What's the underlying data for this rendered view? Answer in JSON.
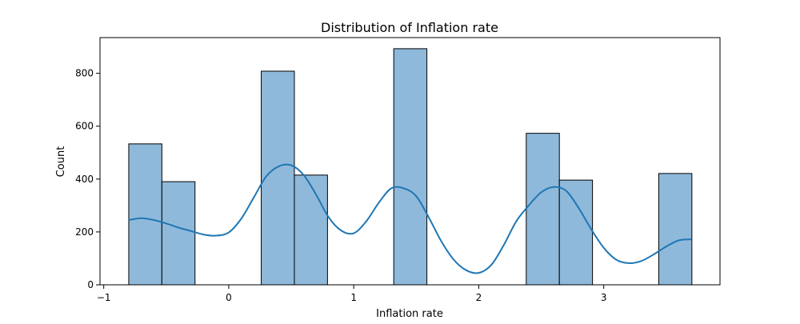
{
  "chart_data": {
    "type": "bar",
    "title": "Distribution of Inflation rate",
    "xlabel": "Inflation rate",
    "ylabel": "Count",
    "xlim": [
      -1.03,
      3.93
    ],
    "ylim": [
      0,
      935
    ],
    "xticks": [
      -1,
      0,
      1,
      2,
      3
    ],
    "yticks": [
      0,
      200,
      400,
      600,
      800
    ],
    "bins": [
      {
        "x0": -0.8,
        "x1": -0.535,
        "count": 533
      },
      {
        "x0": -0.535,
        "x1": -0.27,
        "count": 390
      },
      {
        "x0": -0.27,
        "x1": -0.005,
        "count": 0
      },
      {
        "x0": -0.005,
        "x1": 0.26,
        "count": 0
      },
      {
        "x0": 0.26,
        "x1": 0.525,
        "count": 808
      },
      {
        "x0": 0.525,
        "x1": 0.79,
        "count": 415
      },
      {
        "x0": 0.79,
        "x1": 1.055,
        "count": 0
      },
      {
        "x0": 1.055,
        "x1": 1.32,
        "count": 0
      },
      {
        "x0": 1.32,
        "x1": 1.585,
        "count": 893
      },
      {
        "x0": 1.585,
        "x1": 1.85,
        "count": 0
      },
      {
        "x0": 1.85,
        "x1": 2.115,
        "count": 0
      },
      {
        "x0": 2.115,
        "x1": 2.38,
        "count": 0
      },
      {
        "x0": 2.38,
        "x1": 2.645,
        "count": 573
      },
      {
        "x0": 2.645,
        "x1": 2.91,
        "count": 396
      },
      {
        "x0": 2.91,
        "x1": 3.175,
        "count": 0
      },
      {
        "x0": 3.175,
        "x1": 3.44,
        "count": 0
      },
      {
        "x0": 3.44,
        "x1": 3.705,
        "count": 421
      }
    ],
    "kde": {
      "x": [
        -0.8,
        -0.7,
        -0.6,
        -0.5,
        -0.4,
        -0.3,
        -0.2,
        -0.1,
        0.0,
        0.1,
        0.2,
        0.3,
        0.4,
        0.5,
        0.6,
        0.7,
        0.8,
        0.9,
        1.0,
        1.1,
        1.2,
        1.3,
        1.4,
        1.5,
        1.6,
        1.7,
        1.8,
        1.9,
        2.0,
        2.1,
        2.2,
        2.3,
        2.4,
        2.5,
        2.6,
        2.7,
        2.8,
        2.9,
        3.0,
        3.1,
        3.2,
        3.3,
        3.4,
        3.5,
        3.6,
        3.7
      ],
      "y": [
        245,
        252,
        245,
        232,
        216,
        203,
        190,
        186,
        198,
        250,
        330,
        410,
        448,
        452,
        415,
        340,
        255,
        205,
        195,
        240,
        310,
        365,
        365,
        335,
        255,
        165,
        95,
        55,
        45,
        75,
        150,
        240,
        300,
        350,
        370,
        355,
        290,
        210,
        140,
        95,
        82,
        90,
        115,
        145,
        168,
        172
      ]
    },
    "colors": {
      "bar_fill": "#8fb9da",
      "bar_edge": "#000000",
      "kde_line": "#1f77b4"
    },
    "grid": false,
    "legend": "none"
  }
}
